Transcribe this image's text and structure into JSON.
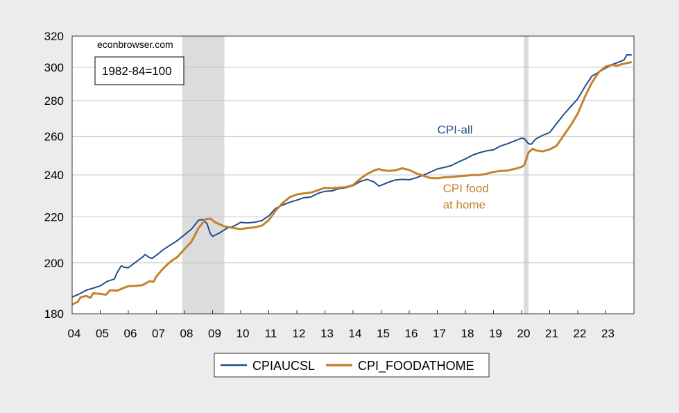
{
  "chart_data": {
    "type": "line",
    "y_scale": "log",
    "x_range": [
      2004,
      2024
    ],
    "ylim": [
      180,
      320
    ],
    "yticks": [
      180,
      200,
      220,
      240,
      260,
      280,
      300,
      320
    ],
    "xticks": [
      {
        "year": 2004,
        "label": "04"
      },
      {
        "year": 2005,
        "label": "05"
      },
      {
        "year": 2006,
        "label": "06"
      },
      {
        "year": 2007,
        "label": "07"
      },
      {
        "year": 2008,
        "label": "08"
      },
      {
        "year": 2009,
        "label": "09"
      },
      {
        "year": 2010,
        "label": "10"
      },
      {
        "year": 2011,
        "label": "11"
      },
      {
        "year": 2012,
        "label": "12"
      },
      {
        "year": 2013,
        "label": "13"
      },
      {
        "year": 2014,
        "label": "14"
      },
      {
        "year": 2015,
        "label": "15"
      },
      {
        "year": 2016,
        "label": "16"
      },
      {
        "year": 2017,
        "label": "17"
      },
      {
        "year": 2018,
        "label": "18"
      },
      {
        "year": 2019,
        "label": "19"
      },
      {
        "year": 2020,
        "label": "20"
      },
      {
        "year": 2021,
        "label": "21"
      },
      {
        "year": 2022,
        "label": "22"
      },
      {
        "year": 2023,
        "label": "23"
      }
    ],
    "grid": true,
    "recessions": [
      [
        2007.92,
        2009.42
      ],
      [
        2020.08,
        2020.25
      ]
    ],
    "source_text": "econbrowser.com",
    "base_note": "1982-84=100",
    "annotations": [
      {
        "text": "CPI-all",
        "x": 2017.0,
        "y": 261.5,
        "color": "#1f4e8c"
      },
      {
        "text": "CPI food",
        "x": 2017.2,
        "y": 231.5,
        "color": "#c4822e"
      },
      {
        "text": "at home",
        "x": 2017.2,
        "y": 223.8,
        "color": "#c4822e"
      }
    ],
    "legend_position": "bottom-center",
    "series": [
      {
        "name": "CPIAUCSL",
        "color": "#1f4e8c",
        "points": [
          [
            2004.0,
            186.3
          ],
          [
            2004.25,
            187.5
          ],
          [
            2004.5,
            189.0
          ],
          [
            2004.75,
            189.8
          ],
          [
            2005.0,
            190.7
          ],
          [
            2005.25,
            192.5
          ],
          [
            2005.5,
            193.4
          ],
          [
            2005.6,
            196.0
          ],
          [
            2005.75,
            198.8
          ],
          [
            2005.85,
            198.2
          ],
          [
            2006.0,
            198.0
          ],
          [
            2006.25,
            200.2
          ],
          [
            2006.5,
            202.4
          ],
          [
            2006.6,
            203.5
          ],
          [
            2006.75,
            202.2
          ],
          [
            2006.85,
            201.9
          ],
          [
            2007.0,
            203.2
          ],
          [
            2007.25,
            205.6
          ],
          [
            2007.5,
            207.6
          ],
          [
            2007.75,
            209.5
          ],
          [
            2008.0,
            212.0
          ],
          [
            2008.25,
            214.5
          ],
          [
            2008.5,
            218.5
          ],
          [
            2008.65,
            218.8
          ],
          [
            2008.8,
            217.0
          ],
          [
            2008.92,
            212.5
          ],
          [
            2009.0,
            211.3
          ],
          [
            2009.25,
            212.8
          ],
          [
            2009.5,
            214.8
          ],
          [
            2009.75,
            215.8
          ],
          [
            2010.0,
            217.5
          ],
          [
            2010.25,
            217.3
          ],
          [
            2010.5,
            217.6
          ],
          [
            2010.75,
            218.3
          ],
          [
            2011.0,
            220.5
          ],
          [
            2011.25,
            224.0
          ],
          [
            2011.5,
            225.5
          ],
          [
            2011.75,
            226.8
          ],
          [
            2012.0,
            227.8
          ],
          [
            2012.25,
            228.9
          ],
          [
            2012.5,
            229.3
          ],
          [
            2012.75,
            231.0
          ],
          [
            2013.0,
            232.0
          ],
          [
            2013.25,
            232.2
          ],
          [
            2013.5,
            233.3
          ],
          [
            2013.75,
            233.7
          ],
          [
            2014.0,
            234.7
          ],
          [
            2014.25,
            236.7
          ],
          [
            2014.5,
            237.8
          ],
          [
            2014.75,
            236.5
          ],
          [
            2014.92,
            234.5
          ],
          [
            2015.0,
            234.9
          ],
          [
            2015.25,
            236.3
          ],
          [
            2015.5,
            237.5
          ],
          [
            2015.75,
            237.8
          ],
          [
            2016.0,
            237.6
          ],
          [
            2016.25,
            238.6
          ],
          [
            2016.5,
            239.9
          ],
          [
            2016.75,
            241.4
          ],
          [
            2017.0,
            243.0
          ],
          [
            2017.25,
            243.8
          ],
          [
            2017.5,
            244.7
          ],
          [
            2017.75,
            246.5
          ],
          [
            2018.0,
            248.1
          ],
          [
            2018.25,
            250.0
          ],
          [
            2018.5,
            251.3
          ],
          [
            2018.75,
            252.3
          ],
          [
            2019.0,
            252.8
          ],
          [
            2019.25,
            254.8
          ],
          [
            2019.5,
            256.0
          ],
          [
            2019.75,
            257.5
          ],
          [
            2020.0,
            259.0
          ],
          [
            2020.1,
            258.7
          ],
          [
            2020.25,
            256.0
          ],
          [
            2020.35,
            255.8
          ],
          [
            2020.5,
            258.5
          ],
          [
            2020.75,
            260.5
          ],
          [
            2021.0,
            262.0
          ],
          [
            2021.25,
            267.0
          ],
          [
            2021.5,
            272.0
          ],
          [
            2021.75,
            276.5
          ],
          [
            2022.0,
            281.0
          ],
          [
            2022.25,
            288.0
          ],
          [
            2022.5,
            294.5
          ],
          [
            2022.75,
            297.0
          ],
          [
            2023.0,
            299.5
          ],
          [
            2023.25,
            301.8
          ],
          [
            2023.5,
            303.5
          ],
          [
            2023.65,
            304.6
          ],
          [
            2023.75,
            307.8
          ],
          [
            2023.92,
            307.7
          ]
        ]
      },
      {
        "name": "CPI_FOODATHOME",
        "color": "#c4822e",
        "points": [
          [
            2004.0,
            183.5
          ],
          [
            2004.2,
            184.5
          ],
          [
            2004.3,
            186.2
          ],
          [
            2004.5,
            186.8
          ],
          [
            2004.65,
            186.0
          ],
          [
            2004.75,
            187.8
          ],
          [
            2005.0,
            187.6
          ],
          [
            2005.2,
            187.2
          ],
          [
            2005.35,
            189.0
          ],
          [
            2005.6,
            188.8
          ],
          [
            2005.75,
            189.5
          ],
          [
            2006.0,
            190.6
          ],
          [
            2006.25,
            190.7
          ],
          [
            2006.5,
            191.0
          ],
          [
            2006.75,
            192.5
          ],
          [
            2006.9,
            192.3
          ],
          [
            2007.0,
            194.5
          ],
          [
            2007.25,
            197.8
          ],
          [
            2007.5,
            200.5
          ],
          [
            2007.75,
            202.5
          ],
          [
            2008.0,
            205.8
          ],
          [
            2008.25,
            209.0
          ],
          [
            2008.5,
            215.0
          ],
          [
            2008.75,
            219.0
          ],
          [
            2008.92,
            219.2
          ],
          [
            2009.1,
            217.5
          ],
          [
            2009.4,
            215.8
          ],
          [
            2009.75,
            215.0
          ],
          [
            2010.0,
            214.5
          ],
          [
            2010.25,
            215.0
          ],
          [
            2010.5,
            215.3
          ],
          [
            2010.75,
            216.0
          ],
          [
            2011.0,
            218.5
          ],
          [
            2011.25,
            223.0
          ],
          [
            2011.5,
            226.5
          ],
          [
            2011.75,
            229.2
          ],
          [
            2012.0,
            230.5
          ],
          [
            2012.25,
            231.0
          ],
          [
            2012.5,
            231.4
          ],
          [
            2012.75,
            232.5
          ],
          [
            2013.0,
            233.7
          ],
          [
            2013.25,
            233.5
          ],
          [
            2013.5,
            233.8
          ],
          [
            2013.75,
            234.0
          ],
          [
            2014.0,
            235.0
          ],
          [
            2014.25,
            238.0
          ],
          [
            2014.5,
            240.5
          ],
          [
            2014.75,
            242.2
          ],
          [
            2014.92,
            243.0
          ],
          [
            2015.0,
            242.5
          ],
          [
            2015.25,
            242.0
          ],
          [
            2015.5,
            242.3
          ],
          [
            2015.75,
            243.3
          ],
          [
            2016.0,
            242.5
          ],
          [
            2016.25,
            240.8
          ],
          [
            2016.5,
            239.6
          ],
          [
            2016.75,
            238.5
          ],
          [
            2017.0,
            238.3
          ],
          [
            2017.25,
            238.8
          ],
          [
            2017.5,
            239.0
          ],
          [
            2017.75,
            239.3
          ],
          [
            2018.0,
            239.6
          ],
          [
            2018.25,
            240.0
          ],
          [
            2018.5,
            239.9
          ],
          [
            2018.75,
            240.6
          ],
          [
            2019.0,
            241.5
          ],
          [
            2019.25,
            242.0
          ],
          [
            2019.5,
            242.2
          ],
          [
            2019.75,
            243.0
          ],
          [
            2020.0,
            244.0
          ],
          [
            2020.1,
            245.0
          ],
          [
            2020.25,
            251.5
          ],
          [
            2020.4,
            253.5
          ],
          [
            2020.5,
            252.5
          ],
          [
            2020.75,
            252.0
          ],
          [
            2021.0,
            253.0
          ],
          [
            2021.25,
            255.0
          ],
          [
            2021.5,
            260.5
          ],
          [
            2021.75,
            266.0
          ],
          [
            2022.0,
            272.5
          ],
          [
            2022.25,
            282.0
          ],
          [
            2022.5,
            290.5
          ],
          [
            2022.75,
            297.0
          ],
          [
            2023.0,
            300.5
          ],
          [
            2023.2,
            301.5
          ],
          [
            2023.4,
            301.0
          ],
          [
            2023.6,
            302.0
          ],
          [
            2023.92,
            303.2
          ]
        ]
      }
    ]
  }
}
